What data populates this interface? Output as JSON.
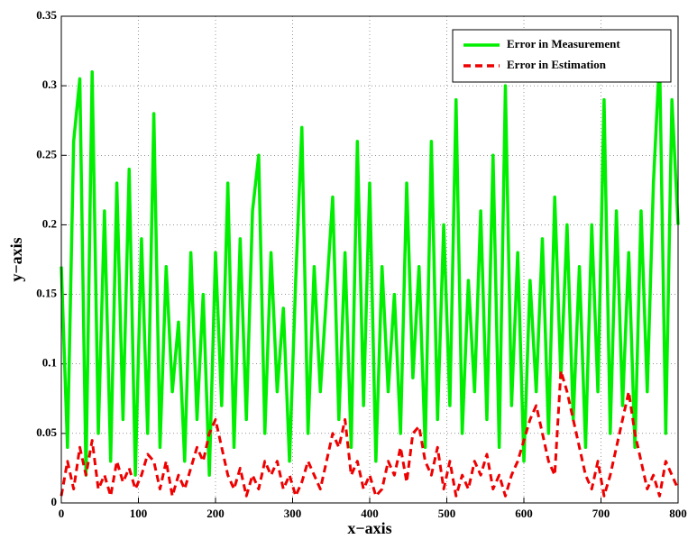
{
  "chart_data": {
    "type": "line",
    "xlabel": "x−axis",
    "ylabel": "y−axis",
    "x": [
      0,
      8,
      16,
      24,
      32,
      40,
      48,
      56,
      64,
      72,
      80,
      88,
      96,
      104,
      112,
      120,
      128,
      136,
      144,
      152,
      160,
      168,
      176,
      184,
      192,
      200,
      208,
      216,
      224,
      232,
      240,
      248,
      256,
      264,
      272,
      280,
      288,
      296,
      304,
      312,
      320,
      328,
      336,
      344,
      352,
      360,
      368,
      376,
      384,
      392,
      400,
      408,
      416,
      424,
      432,
      440,
      448,
      456,
      464,
      472,
      480,
      488,
      496,
      504,
      512,
      520,
      528,
      536,
      544,
      552,
      560,
      568,
      576,
      584,
      592,
      600,
      608,
      616,
      624,
      632,
      640,
      648,
      656,
      664,
      672,
      680,
      688,
      696,
      704,
      712,
      720,
      728,
      736,
      744,
      752,
      760,
      768,
      776,
      784,
      792,
      800
    ],
    "series": [
      {
        "name": "Error in Measurement",
        "color": "#00ee00",
        "dash": false,
        "values": [
          0.17,
          0.04,
          0.26,
          0.305,
          0.02,
          0.31,
          0.05,
          0.21,
          0.03,
          0.23,
          0.06,
          0.24,
          0.02,
          0.19,
          0.05,
          0.28,
          0.04,
          0.17,
          0.08,
          0.13,
          0.03,
          0.18,
          0.06,
          0.15,
          0.02,
          0.18,
          0.07,
          0.23,
          0.04,
          0.19,
          0.06,
          0.21,
          0.25,
          0.05,
          0.18,
          0.08,
          0.14,
          0.03,
          0.16,
          0.27,
          0.05,
          0.17,
          0.08,
          0.15,
          0.22,
          0.06,
          0.18,
          0.04,
          0.26,
          0.07,
          0.23,
          0.03,
          0.17,
          0.08,
          0.15,
          0.05,
          0.23,
          0.09,
          0.17,
          0.04,
          0.26,
          0.06,
          0.2,
          0.07,
          0.29,
          0.05,
          0.16,
          0.08,
          0.21,
          0.06,
          0.25,
          0.04,
          0.3,
          0.07,
          0.18,
          0.03,
          0.16,
          0.08,
          0.19,
          0.05,
          0.22,
          0.09,
          0.2,
          0.06,
          0.17,
          0.04,
          0.2,
          0.08,
          0.29,
          0.05,
          0.21,
          0.07,
          0.18,
          0.04,
          0.21,
          0.08,
          0.23,
          0.32,
          0.05,
          0.29,
          0.2
        ]
      },
      {
        "name": "Error in Estimation",
        "color": "#ee0000",
        "dash": true,
        "values": [
          0.005,
          0.03,
          0.01,
          0.04,
          0.02,
          0.045,
          0.01,
          0.02,
          0.005,
          0.03,
          0.015,
          0.025,
          0.01,
          0.02,
          0.035,
          0.03,
          0.01,
          0.03,
          0.005,
          0.02,
          0.01,
          0.025,
          0.04,
          0.03,
          0.05,
          0.06,
          0.04,
          0.02,
          0.01,
          0.025,
          0.005,
          0.02,
          0.01,
          0.03,
          0.02,
          0.03,
          0.01,
          0.02,
          0.005,
          0.015,
          0.03,
          0.02,
          0.01,
          0.03,
          0.05,
          0.04,
          0.06,
          0.02,
          0.03,
          0.01,
          0.02,
          0.005,
          0.01,
          0.03,
          0.02,
          0.04,
          0.015,
          0.05,
          0.055,
          0.03,
          0.02,
          0.04,
          0.01,
          0.03,
          0.005,
          0.02,
          0.01,
          0.03,
          0.02,
          0.035,
          0.01,
          0.02,
          0.005,
          0.02,
          0.03,
          0.045,
          0.06,
          0.07,
          0.05,
          0.03,
          0.02,
          0.095,
          0.08,
          0.06,
          0.04,
          0.02,
          0.01,
          0.03,
          0.005,
          0.02,
          0.04,
          0.06,
          0.08,
          0.05,
          0.03,
          0.01,
          0.02,
          0.005,
          0.03,
          0.02,
          0.01
        ]
      }
    ],
    "xlim": [
      0,
      800
    ],
    "xticks": [
      0,
      100,
      200,
      300,
      400,
      500,
      600,
      700,
      800
    ],
    "ylim": [
      0,
      0.35
    ],
    "yticks": [
      0,
      0.05,
      0.1,
      0.15,
      0.2,
      0.25,
      0.3,
      0.35
    ],
    "grid": true,
    "legend": "northeast"
  }
}
